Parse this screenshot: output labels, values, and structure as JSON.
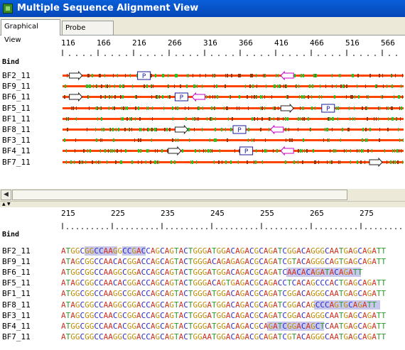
{
  "window": {
    "title": "Multiple Sequence Alignment View"
  },
  "tabs": [
    {
      "label": "Graphical View",
      "active": true
    },
    {
      "label": "Probe Details",
      "active": false
    }
  ],
  "graphical": {
    "axis_ticks": [
      "116",
      "166",
      "216",
      "266",
      "316",
      "366",
      "416",
      "466",
      "516",
      "566"
    ],
    "bind_label": "Bind",
    "rows": [
      {
        "label": "BF2_11",
        "features": [
          {
            "type": "arrow-right",
            "pos": 0.02
          },
          {
            "type": "probe",
            "pos": 0.22,
            "text": "P"
          },
          {
            "type": "arrow-left",
            "pos": 0.64
          }
        ]
      },
      {
        "label": "BF9_11",
        "features": []
      },
      {
        "label": "BF6_11",
        "features": [
          {
            "type": "arrow-right",
            "pos": 0.02
          },
          {
            "type": "probe",
            "pos": 0.33,
            "text": "P"
          },
          {
            "type": "arrow-left",
            "pos": 0.38
          }
        ]
      },
      {
        "label": "BF5_11",
        "features": [
          {
            "type": "arrow-right",
            "pos": 0.64
          },
          {
            "type": "probe",
            "pos": 0.76,
            "text": "P"
          }
        ]
      },
      {
        "label": "BF1_11",
        "features": []
      },
      {
        "label": "BF8_11",
        "features": [
          {
            "type": "arrow-right",
            "pos": 0.33
          },
          {
            "type": "probe",
            "pos": 0.5,
            "text": "P"
          },
          {
            "type": "arrow-left",
            "pos": 0.61
          }
        ]
      },
      {
        "label": "BF3_11",
        "features": []
      },
      {
        "label": "BF4_11",
        "features": [
          {
            "type": "arrow-right",
            "pos": 0.31
          },
          {
            "type": "probe",
            "pos": 0.52,
            "text": "P"
          },
          {
            "type": "arrow-left",
            "pos": 0.64
          }
        ]
      },
      {
        "label": "BF7_11",
        "features": [
          {
            "type": "arrow-right",
            "pos": 0.9
          }
        ]
      }
    ],
    "colors": {
      "track": "#ff4400",
      "track_dark": "#8b3a00",
      "variant": "#22c828",
      "probe_border": "#1a1a9a",
      "primer_fwd": "#222222",
      "primer_rev": "#c800c8"
    }
  },
  "sequence_view": {
    "axis_ticks": [
      "215",
      "225",
      "235",
      "245",
      "255",
      "265",
      "275"
    ],
    "bind_label": "Bind",
    "rows": [
      {
        "label": "BF2_11",
        "seq": "ATGGCGGCCAAGGCCGACCAGCAGTACTGGGATGGACAGACGCAGATCGGACAGGGCAATGAGCAGATT"
      },
      {
        "label": "BF9_11",
        "seq": "ATAGCGGCCAACACGGACCAGCAGTACTGGGACAGAGAGACGCAGATCGTACAGGGCAGTGAGCAGATT"
      },
      {
        "label": "BF6_11",
        "seq": "ATGGCGGCCAAGGCGGACCAGCAGTACTGGGATGGACAGACGCAGATCAACACAGATACAGATT"
      },
      {
        "label": "BF5_11",
        "seq": "ATAGCGGCCAACACGGACCAGCAGTACTGGGACAGTGAGACGCAGACCTCACAGCCCACTGAGCAGATT"
      },
      {
        "label": "BF1_11",
        "seq": "ATGGCGGCCAAGGCGGACCAGCAGTACTGGGATGGACAGACGCAGATCGGACAGGGCAATGAGCAGATT"
      },
      {
        "label": "BF8_11",
        "seq": "ATAGCGGCCAAGGCGGACCAGCAGTACTGGGATGGACAGACGCAGATCGGACAGCCCAGTGCAGATT"
      },
      {
        "label": "BF3_11",
        "seq": "ATAGCGGCCAACGCGGACCAGCAGTACTGGGATGGACAGACGCAGATCGGACAGGGCAATGAGCAGATT"
      },
      {
        "label": "BF4_11",
        "seq": "ATGGCGGCCAACACGGACCAGCAGTACTGGGATGGACAGACGCAGATCGGACAGCTCAATGAGCAGATT"
      },
      {
        "label": "BF7_11",
        "seq": "ATGGCGGCCAAGGCGGACCAGCAGTACTGGAATGGACAGACGCAGATCGTACAGGGCAATGAGCAGATT"
      }
    ],
    "base_colors": {
      "A": "#d03020",
      "T": "#2a9a2a",
      "G": "#c08a00",
      "C": "#2828c8"
    }
  }
}
